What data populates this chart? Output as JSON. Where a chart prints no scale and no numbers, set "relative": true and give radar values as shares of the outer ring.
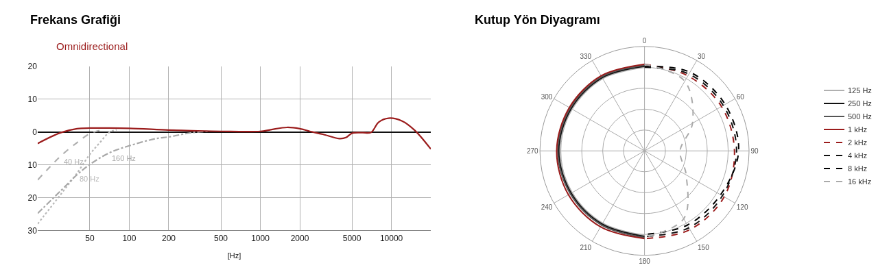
{
  "chart_data": [
    {
      "type": "line",
      "title": "Frekans Grafiği",
      "subtitle": "Omnidirectional",
      "xlabel": "[Hz]",
      "log": "x",
      "xlim": [
        20,
        20000
      ],
      "xticks": [
        50,
        100,
        200,
        500,
        1000,
        2000,
        5000,
        10000
      ],
      "ylim": [
        -30,
        20
      ],
      "yticks": [
        20,
        10,
        0,
        {
          "value": -10,
          "label": "10"
        },
        {
          "value": -20,
          "label": "20"
        },
        {
          "value": -30,
          "label": "30"
        }
      ],
      "grid": true,
      "legend": false,
      "series": [
        {
          "color": "#b0b0b0",
          "line_style": "dashed",
          "name": "40 Hz",
          "x": [
            20,
            25,
            30,
            40,
            50,
            60
          ],
          "values": [
            -14.6,
            -10.5,
            -7.3,
            -3.2,
            -0.5,
            0.5
          ]
        },
        {
          "color": "#b8b8b8",
          "line_style": "dotted",
          "name": "80 Hz",
          "x": [
            20,
            30,
            40,
            50,
            60,
            70,
            80
          ],
          "values": [
            -28,
            -19,
            -12.5,
            -6.8,
            -3.1,
            -0.2,
            0.7
          ]
        },
        {
          "color": "#a8a8a8",
          "line_style": "dashdot",
          "name": "160 Hz",
          "x": [
            20,
            30,
            40,
            50,
            70,
            100,
            160,
            200,
            300,
            400
          ],
          "values": [
            -24.8,
            -17.9,
            -13,
            -9.9,
            -6.4,
            -4.2,
            -2,
            -1.5,
            -0.2,
            0.2
          ]
        },
        {
          "color": "#9b1c1c",
          "line_style": "solid",
          "x": [
            20,
            30,
            40,
            50,
            70,
            100,
            200,
            300,
            500,
            1000,
            1200,
            1600,
            2000,
            2500,
            3000,
            4000,
            4500,
            5000,
            6000,
            7000,
            8000,
            9500,
            12000,
            15000,
            20000
          ],
          "values": [
            -3.5,
            -0.2,
            1,
            1.2,
            1.2,
            1.1,
            0.6,
            0.4,
            0.2,
            0.2,
            0.7,
            1.4,
            1,
            0,
            -0.7,
            -2,
            -1.7,
            -0.4,
            -0.2,
            -0.1,
            3,
            4.2,
            3.4,
            0.6,
            -5.2
          ]
        }
      ]
    },
    {
      "type": "radar",
      "title": "Kutup Yön Diyagramı",
      "relative": true,
      "legend": "right",
      "grid": true,
      "categories": [
        "0",
        "30",
        "60",
        "90",
        "120",
        "150",
        "180",
        "210",
        "240",
        "270",
        "300",
        "330"
      ],
      "series": [
        {
          "name": "125 Hz",
          "color": "#b0b0b0",
          "line_style": "solid",
          "values": [
            0.8,
            null,
            null,
            null,
            null,
            null,
            0.81,
            0.8,
            0.8,
            0.81,
            0.8,
            0.8
          ]
        },
        {
          "name": "250 Hz",
          "color": "#111111",
          "line_style": "solid",
          "values": [
            0.81,
            null,
            null,
            null,
            null,
            null,
            0.82,
            0.81,
            0.81,
            0.82,
            0.81,
            0.81
          ]
        },
        {
          "name": "500 Hz",
          "color": "#555555",
          "line_style": "solid",
          "values": [
            0.82,
            null,
            null,
            null,
            null,
            null,
            0.83,
            0.82,
            0.82,
            0.83,
            0.82,
            0.82
          ]
        },
        {
          "name": "1 kHz",
          "color": "#9b1c1c",
          "line_style": "solid",
          "values": [
            0.83,
            null,
            null,
            null,
            null,
            null,
            0.84,
            0.84,
            0.84,
            0.84,
            0.83,
            0.83
          ]
        },
        {
          "name": "2 kHz",
          "color": "#9b1c1c",
          "line_style": "dashed",
          "values": [
            0.83,
            0.83,
            0.85,
            0.86,
            0.88,
            0.87,
            0.84,
            null,
            null,
            null,
            null,
            null
          ]
        },
        {
          "name": "4 kHz",
          "color": "#111111",
          "line_style": "dashed",
          "values": [
            0.8,
            0.85,
            0.87,
            0.88,
            0.86,
            0.85,
            0.82,
            null,
            null,
            null,
            null,
            null
          ]
        },
        {
          "name": "8 kHz",
          "color": "#000000",
          "line_style": "dashed",
          "values": [
            0.81,
            0.87,
            0.89,
            0.9,
            0.84,
            0.82,
            0.8,
            null,
            null,
            null,
            null,
            null
          ]
        },
        {
          "name": "16 kHz",
          "color": "#aaaaaa",
          "line_style": "dashed",
          "values": [
            0.83,
            0.77,
            0.53,
            0.34,
            0.46,
            0.75,
            0.83,
            null,
            null,
            null,
            null,
            null
          ]
        }
      ]
    }
  ]
}
